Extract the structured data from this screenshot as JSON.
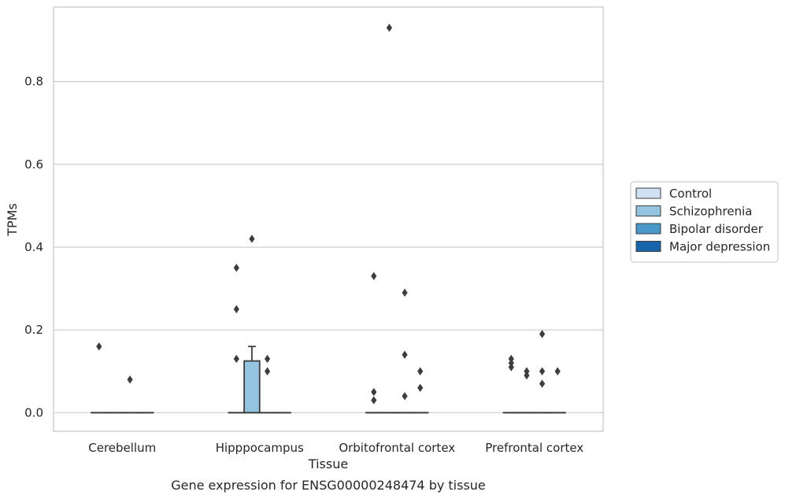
{
  "chart_data": {
    "type": "box",
    "xlabel": "Tissue",
    "ylabel": "TPMs",
    "caption": "Gene expression for ENSG00000248474 by tissue",
    "categories": [
      "Cerebellum",
      "Hipppocampus",
      "Orbitofrontal cortex",
      "Prefrontal cortex"
    ],
    "ylim": [
      -0.045,
      0.98
    ],
    "yticks": [
      {
        "value": 0.0,
        "label": "0.0"
      },
      {
        "value": 0.2,
        "label": "0.2"
      },
      {
        "value": 0.4,
        "label": "0.4"
      },
      {
        "value": 0.6,
        "label": "0.6"
      },
      {
        "value": 0.8,
        "label": "0.8"
      }
    ],
    "grid": "horizontal",
    "legend_placement": "right",
    "series": [
      {
        "name": "Control",
        "color": "#d0e1f2",
        "boxes": [
          {
            "q1": 0,
            "median": 0,
            "q3": 0,
            "whisker_low": 0,
            "whisker_high": 0,
            "outliers": [
              0.16
            ]
          },
          {
            "q1": 0,
            "median": 0,
            "q3": 0,
            "whisker_low": 0,
            "whisker_high": 0,
            "outliers": [
              0.35,
              0.25,
              0.13
            ]
          },
          {
            "q1": 0,
            "median": 0,
            "q3": 0,
            "whisker_low": 0,
            "whisker_high": 0,
            "outliers": [
              0.33,
              0.05,
              0.03
            ]
          },
          {
            "q1": 0,
            "median": 0,
            "q3": 0,
            "whisker_low": 0,
            "whisker_high": 0,
            "outliers": [
              0.13,
              0.12,
              0.11
            ]
          }
        ]
      },
      {
        "name": "Schizophrenia",
        "color": "#94c4df",
        "boxes": [
          {
            "q1": 0,
            "median": 0,
            "q3": 0,
            "whisker_low": 0,
            "whisker_high": 0,
            "outliers": []
          },
          {
            "q1": 0,
            "median": 0,
            "q3": 0.125,
            "whisker_low": 0,
            "whisker_high": 0.16,
            "outliers": [
              0.42
            ]
          },
          {
            "q1": 0,
            "median": 0,
            "q3": 0,
            "whisker_low": 0,
            "whisker_high": 0,
            "outliers": [
              0.93
            ]
          },
          {
            "q1": 0,
            "median": 0,
            "q3": 0,
            "whisker_low": 0,
            "whisker_high": 0,
            "outliers": [
              0.1,
              0.09
            ]
          }
        ]
      },
      {
        "name": "Bipolar disorder",
        "color": "#4a98c9",
        "boxes": [
          {
            "q1": 0,
            "median": 0,
            "q3": 0,
            "whisker_low": 0,
            "whisker_high": 0,
            "outliers": [
              0.08
            ]
          },
          {
            "q1": 0,
            "median": 0,
            "q3": 0,
            "whisker_low": 0,
            "whisker_high": 0,
            "outliers": [
              0.13,
              0.1
            ]
          },
          {
            "q1": 0,
            "median": 0,
            "q3": 0,
            "whisker_low": 0,
            "whisker_high": 0,
            "outliers": [
              0.29,
              0.14,
              0.04
            ]
          },
          {
            "q1": 0,
            "median": 0,
            "q3": 0,
            "whisker_low": 0,
            "whisker_high": 0,
            "outliers": [
              0.19,
              0.1,
              0.07
            ]
          }
        ]
      },
      {
        "name": "Major depression",
        "color": "#1764ab",
        "boxes": [
          {
            "q1": 0,
            "median": 0,
            "q3": 0,
            "whisker_low": 0,
            "whisker_high": 0,
            "outliers": []
          },
          {
            "q1": 0,
            "median": 0,
            "q3": 0,
            "whisker_low": 0,
            "whisker_high": 0,
            "outliers": []
          },
          {
            "q1": 0,
            "median": 0,
            "q3": 0,
            "whisker_low": 0,
            "whisker_high": 0,
            "outliers": [
              0.1,
              0.06
            ]
          },
          {
            "q1": 0,
            "median": 0,
            "q3": 0,
            "whisker_low": 0,
            "whisker_high": 0,
            "outliers": [
              0.1
            ]
          }
        ]
      }
    ]
  }
}
